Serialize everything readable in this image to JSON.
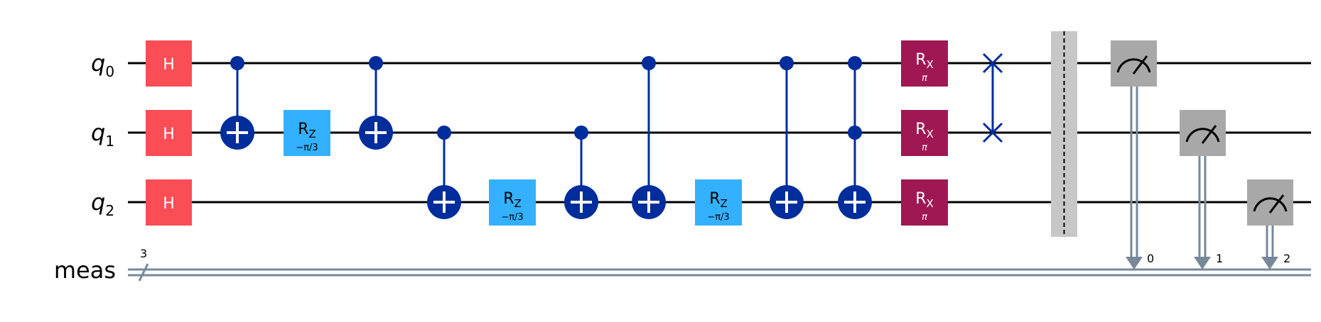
{
  "colors": {
    "hadamard": "#fa4d56",
    "rz": "#33b1ff",
    "rx": "#9f1853",
    "control": "#002d9c",
    "measure": "#a8a8a8",
    "barrier": "#c7c7c7",
    "classical": "#778899",
    "wire": "#000000"
  },
  "wires": {
    "qubits": [
      {
        "base": "q",
        "index": "0"
      },
      {
        "base": "q",
        "index": "1"
      },
      {
        "base": "q",
        "index": "2"
      }
    ],
    "classical": {
      "label": "meas",
      "size": "3"
    }
  },
  "gates": {
    "h_label": "H",
    "rz": {
      "base": "R",
      "sub": "Z",
      "param": "−π/3"
    },
    "rx": {
      "base": "R",
      "sub": "X",
      "param": "π"
    }
  },
  "measure_bits": [
    "0",
    "1",
    "2"
  ]
}
